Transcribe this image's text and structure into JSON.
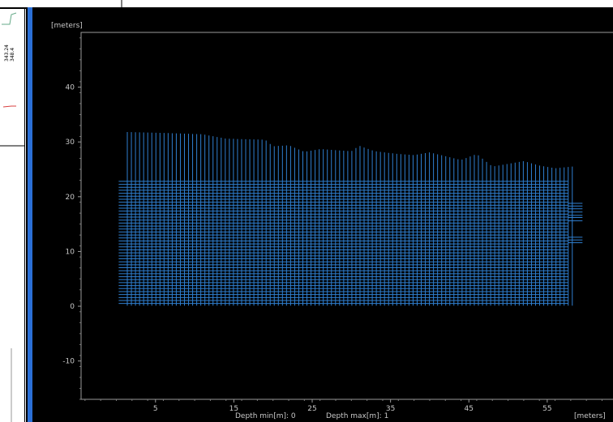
{
  "side_panel": {
    "readout_1": "343.24",
    "readout_2": "348.4"
  },
  "footer": {
    "depth_min": "Depth min[m]: 0",
    "depth_max": "Depth max[m]: 1"
  },
  "chart_data": {
    "type": "line",
    "description_units": {
      "y_top": "[meters]",
      "x_right": "[meters]"
    },
    "xlim": [
      -4.5,
      63.5
    ],
    "ylim": [
      -17,
      50
    ],
    "x_ticks": [
      5,
      15,
      25,
      35,
      45,
      55
    ],
    "y_ticks": [
      -10,
      0,
      10,
      20,
      30,
      40
    ],
    "grid": false,
    "line_color": "#2f7fd0",
    "vertical_lines": {
      "x_start": 1.4,
      "x_end": 58.2,
      "count": 110,
      "y_bottom": 0.1,
      "top_profile": [
        [
          1.4,
          31.8
        ],
        [
          7,
          31.6
        ],
        [
          11,
          31.4
        ],
        [
          14,
          30.6
        ],
        [
          19,
          30.4
        ],
        [
          20,
          29.2
        ],
        [
          22,
          29.4
        ],
        [
          24,
          28.2
        ],
        [
          26,
          28.7
        ],
        [
          30,
          28.3
        ],
        [
          31,
          29.3
        ],
        [
          33,
          28.3
        ],
        [
          36,
          27.8
        ],
        [
          38,
          27.6
        ],
        [
          40,
          28.1
        ],
        [
          44,
          26.7
        ],
        [
          46,
          27.8
        ],
        [
          48,
          25.5
        ],
        [
          50,
          26.0
        ],
        [
          52,
          26.5
        ],
        [
          54,
          25.7
        ],
        [
          56,
          25.2
        ],
        [
          58.2,
          25.5
        ]
      ]
    },
    "horizontal_lines": {
      "x_start": 0.3,
      "x_end": 57.7,
      "y_bottom": 0.5,
      "y_top": 22.8,
      "count": 42
    },
    "right_stubs": {
      "x_start": 57.7,
      "x_end": 59.5,
      "y_values": [
        18.8,
        18.3,
        17.8,
        17.2,
        16.6,
        16.2,
        15.6,
        12.6,
        12.1,
        11.6
      ]
    }
  }
}
